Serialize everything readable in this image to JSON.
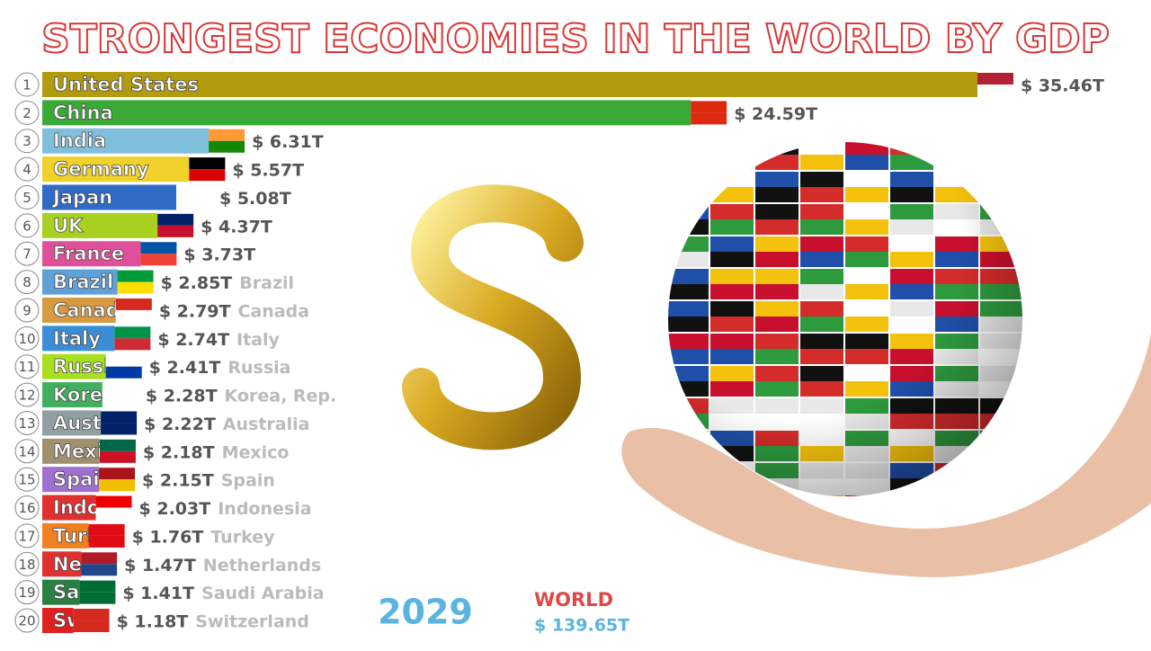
{
  "chart_data": {
    "type": "bar",
    "orientation": "horizontal",
    "title": "STRONGEST ECONOMIES IN THE WORLD BY GDP",
    "ranks": [
      1,
      2,
      3,
      4,
      5,
      6,
      7,
      8,
      9,
      10,
      11,
      12,
      13,
      14,
      15,
      16,
      17,
      18,
      19,
      20
    ],
    "categories": [
      "United States",
      "China",
      "India",
      "Germany",
      "Japan",
      "UK",
      "France",
      "Brazil",
      "Canada",
      "Italy",
      "Russia",
      "Korea, Rep.",
      "Australia",
      "Mexico",
      "Spain",
      "Indonesia",
      "Turkey",
      "Netherlands",
      "Saudi Arabia",
      "Switzerland"
    ],
    "values": [
      35.46,
      24.59,
      6.31,
      5.57,
      5.08,
      4.37,
      3.73,
      2.85,
      2.79,
      2.74,
      2.41,
      2.28,
      2.22,
      2.18,
      2.15,
      2.03,
      1.76,
      1.47,
      1.41,
      1.18
    ],
    "value_labels": [
      "$ 35.46T",
      "$ 24.59T",
      "$ 6.31T",
      "$ 5.57T",
      "$ 5.08T",
      "$ 4.37T",
      "$ 3.73T",
      "$ 2.85T",
      "$ 2.79T",
      "$ 2.74T",
      "$ 2.41T",
      "$ 2.28T",
      "$ 2.22T",
      "$ 2.18T",
      "$ 2.15T",
      "$ 2.03T",
      "$ 1.76T",
      "$ 1.47T",
      "$ 1.41T",
      "$ 1.18T"
    ],
    "colors": [
      "#b39b0e",
      "#3aa935",
      "#7fbfdc",
      "#f0d22a",
      "#2e6cc8",
      "#a8d020",
      "#e0509a",
      "#5fa0d8",
      "#d89a40",
      "#3a8ed8",
      "#a8e020",
      "#40b060",
      "#90a0a0",
      "#a09070",
      "#a070d0",
      "#e03030",
      "#f08020",
      "#e03030",
      "#2a8040",
      "#e02020"
    ],
    "year": "2029",
    "total_label": "WORLD",
    "total_value": "$ 139.65T"
  }
}
